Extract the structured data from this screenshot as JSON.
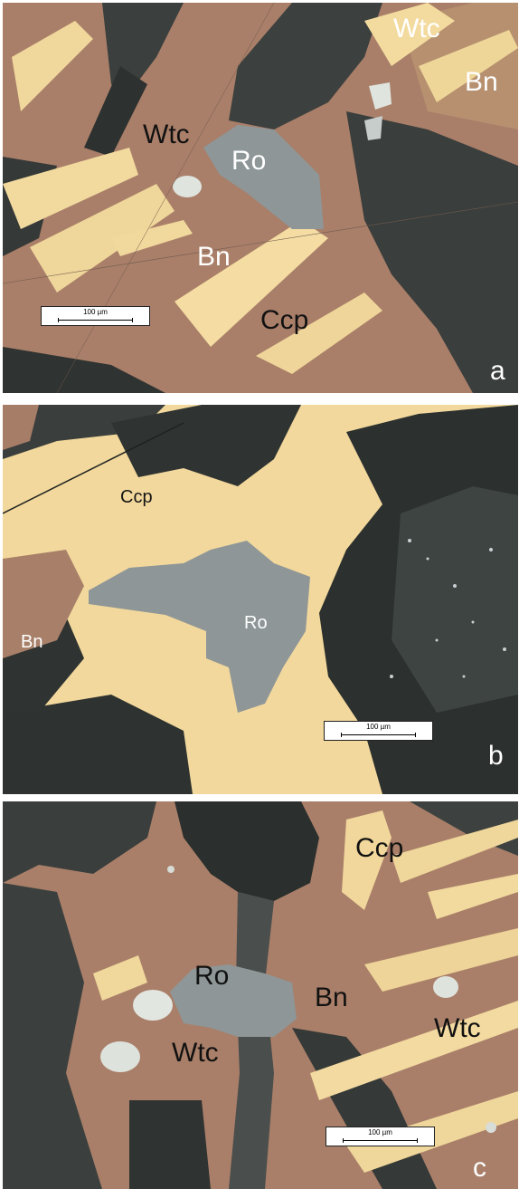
{
  "panels": [
    {
      "letter": "a",
      "labels": {
        "wtc_top": "Wtc",
        "bn_top": "Bn",
        "wtc_left": "Wtc",
        "ro": "Ro",
        "bn_mid": "Bn",
        "ccp": "Ccp"
      },
      "scale": "100 µm"
    },
    {
      "letter": "b",
      "labels": {
        "ccp": "Ccp",
        "ro": "Ro",
        "bn": "Bn"
      },
      "scale": "100 µm"
    },
    {
      "letter": "c",
      "labels": {
        "ccp": "Ccp",
        "ro": "Ro",
        "bn": "Bn",
        "wtc_left": "Wtc",
        "wtc_right": "Wtc"
      },
      "scale": "100 µm"
    }
  ],
  "colors": {
    "bornite": "#a97f69",
    "chalcopyrite": "#f2d79b",
    "roquesite": "#8d9597",
    "wittichenite": "#dfe3de",
    "gangue": "#3a3f3d"
  }
}
